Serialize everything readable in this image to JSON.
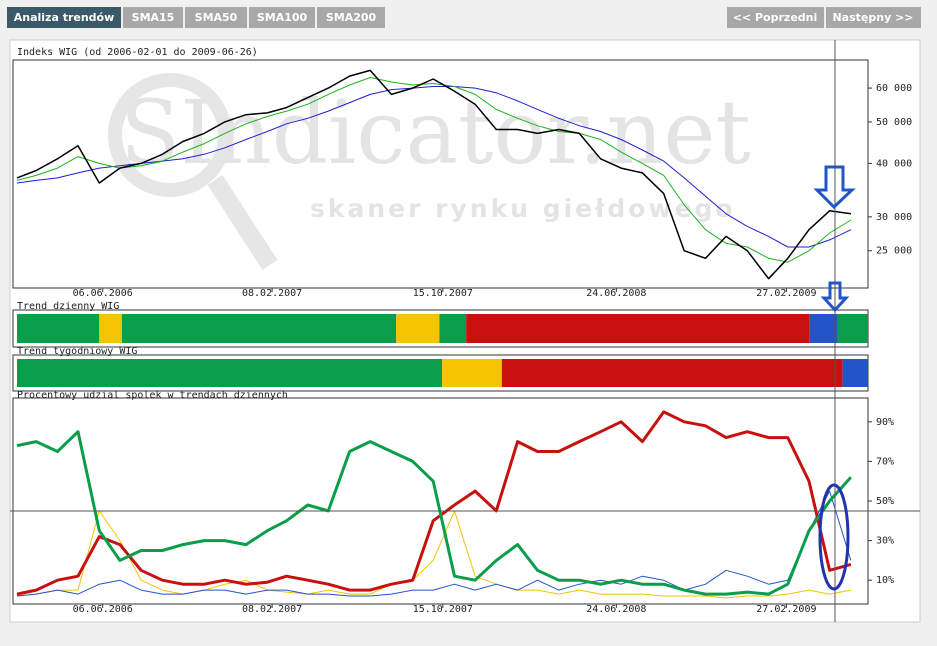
{
  "tabs": [
    "Analiza trendów",
    "SMA15",
    "SMA50",
    "SMA100",
    "SMA200"
  ],
  "nav": [
    "<< Poprzedni",
    "Następny >>"
  ],
  "watermark": {
    "title": "SIndicator.net",
    "subtitle": "skaner rynku giełdowego"
  },
  "chart_data": [
    {
      "type": "line",
      "title": "Indeks WIG (od 2006-02-01 do 2009-06-26)",
      "log": true,
      "xlim": [
        "2006-02-01",
        "2009-06-26"
      ],
      "xticks": [
        {
          "value": "2006-06-06",
          "label": "06.06.2006"
        },
        {
          "value": "2007-02-08",
          "label": "08.02.2007"
        },
        {
          "value": "2007-10-15",
          "label": "15.10.2007"
        },
        {
          "value": "2008-06-24",
          "label": "24.06.2008"
        },
        {
          "value": "2009-02-27",
          "label": "27.02.2009"
        }
      ],
      "ylim": [
        20900,
        68300
      ],
      "yticks": [
        {
          "value": 25000,
          "label": "25 000"
        },
        {
          "value": 30000,
          "label": "30 000"
        },
        {
          "value": 40000,
          "label": "40 000"
        },
        {
          "value": 50000,
          "label": "50 000"
        },
        {
          "value": 60000,
          "label": "60 000"
        }
      ],
      "x": [
        "2006-02-01",
        "2006-03-01",
        "2006-04-01",
        "2006-05-01",
        "2006-06-01",
        "2006-07-01",
        "2006-08-01",
        "2006-09-01",
        "2006-10-01",
        "2006-11-01",
        "2006-12-01",
        "2007-01-01",
        "2007-02-01",
        "2007-03-01",
        "2007-04-01",
        "2007-05-01",
        "2007-06-01",
        "2007-07-01",
        "2007-08-01",
        "2007-09-01",
        "2007-10-01",
        "2007-11-01",
        "2007-12-01",
        "2008-01-01",
        "2008-02-01",
        "2008-03-01",
        "2008-04-01",
        "2008-05-01",
        "2008-06-01",
        "2008-07-01",
        "2008-08-01",
        "2008-09-01",
        "2008-10-01",
        "2008-11-01",
        "2008-12-01",
        "2009-01-01",
        "2009-02-01",
        "2009-03-01",
        "2009-04-01",
        "2009-05-01",
        "2009-06-01"
      ],
      "series": [
        {
          "color": "#1f1fd0",
          "width": 1,
          "values": [
            36000,
            36500,
            37000,
            38000,
            39000,
            39500,
            40000,
            40500,
            41000,
            42000,
            43500,
            45500,
            47500,
            49500,
            51000,
            53000,
            55500,
            58000,
            59500,
            60000,
            60500,
            60500,
            60000,
            58500,
            56000,
            53500,
            51000,
            49000,
            47500,
            45500,
            43000,
            40500,
            37000,
            33500,
            30500,
            28500,
            27000,
            25500,
            25500,
            26500,
            28000
          ]
        },
        {
          "color": "#1db31d",
          "width": 1,
          "values": [
            36500,
            37500,
            39000,
            41500,
            40000,
            39000,
            39500,
            40500,
            42500,
            44500,
            47000,
            49500,
            51500,
            53000,
            55000,
            58000,
            61000,
            63500,
            62000,
            61000,
            61500,
            60500,
            58000,
            53500,
            51000,
            49000,
            47500,
            47000,
            45500,
            42500,
            40000,
            37500,
            32000,
            28000,
            26000,
            25500,
            24000,
            23500,
            25000,
            27500,
            29500
          ]
        },
        {
          "color": "#000000",
          "width": 1.5,
          "values": [
            37000,
            38500,
            41000,
            44000,
            36000,
            39000,
            40000,
            42000,
            45000,
            47000,
            50000,
            52000,
            52500,
            54000,
            57000,
            60000,
            64000,
            66000,
            58000,
            60000,
            63000,
            59000,
            55000,
            48000,
            48000,
            47000,
            48000,
            47000,
            41000,
            39000,
            38000,
            34000,
            25000,
            24000,
            27000,
            25000,
            21500,
            24000,
            28000,
            31000,
            30500
          ]
        }
      ]
    },
    {
      "type": "strip",
      "title": "Trend dzienny WIG",
      "xlim": [
        "2006-02-01",
        "2009-06-26"
      ],
      "segments": [
        {
          "x0": "2006-02-01",
          "x1": "2006-06-01",
          "color": "#0a9e4a"
        },
        {
          "x0": "2006-06-01",
          "x1": "2006-07-04",
          "color": "#f5c400"
        },
        {
          "x0": "2006-07-04",
          "x1": "2007-08-08",
          "color": "#0a9e4a"
        },
        {
          "x0": "2007-08-08",
          "x1": "2007-10-10",
          "color": "#f5c400"
        },
        {
          "x0": "2007-10-10",
          "x1": "2007-11-18",
          "color": "#0a9e4a"
        },
        {
          "x0": "2007-11-18",
          "x1": "2009-04-02",
          "color": "#c8100f"
        },
        {
          "x0": "2009-04-02",
          "x1": "2009-05-13",
          "color": "#2255c8"
        },
        {
          "x0": "2009-05-13",
          "x1": "2009-06-26",
          "color": "#0a9e4a"
        }
      ]
    },
    {
      "type": "strip",
      "title": "Trend tygodniowy WIG",
      "xlim": [
        "2006-02-01",
        "2009-06-26"
      ],
      "segments": [
        {
          "x0": "2006-02-01",
          "x1": "2007-10-14",
          "color": "#0a9e4a"
        },
        {
          "x0": "2007-10-14",
          "x1": "2008-01-09",
          "color": "#f5c400"
        },
        {
          "x0": "2008-01-09",
          "x1": "2009-05-20",
          "color": "#c8100f"
        },
        {
          "x0": "2009-05-20",
          "x1": "2009-06-26",
          "color": "#2255c8"
        }
      ]
    },
    {
      "type": "line",
      "title": "Procentowy udzial spolek w trendach dziennych",
      "xlim": [
        "2006-02-01",
        "2009-06-26"
      ],
      "xticks": [
        {
          "value": "2006-06-06",
          "label": "06.06.2006"
        },
        {
          "value": "2007-02-08",
          "label": "08.02.2007"
        },
        {
          "value": "2007-10-15",
          "label": "15.10.2007"
        },
        {
          "value": "2008-06-24",
          "label": "24.06.2008"
        },
        {
          "value": "2009-02-27",
          "label": "27.02.2009"
        }
      ],
      "ylim": [
        0,
        100
      ],
      "yticks": [
        {
          "value": 10,
          "label": "10%"
        },
        {
          "value": 30,
          "label": "30%"
        },
        {
          "value": 50,
          "label": "50%"
        },
        {
          "value": 70,
          "label": "70%"
        },
        {
          "value": 90,
          "label": "90%"
        }
      ],
      "x": [
        "2006-02-01",
        "2006-03-01",
        "2006-04-01",
        "2006-05-01",
        "2006-06-01",
        "2006-07-01",
        "2006-08-01",
        "2006-09-01",
        "2006-10-01",
        "2006-11-01",
        "2006-12-01",
        "2007-01-01",
        "2007-02-01",
        "2007-03-01",
        "2007-04-01",
        "2007-05-01",
        "2007-06-01",
        "2007-07-01",
        "2007-08-01",
        "2007-09-01",
        "2007-10-01",
        "2007-11-01",
        "2007-12-01",
        "2008-01-01",
        "2008-02-01",
        "2008-03-01",
        "2008-04-01",
        "2008-05-01",
        "2008-06-01",
        "2008-07-01",
        "2008-08-01",
        "2008-09-01",
        "2008-10-01",
        "2008-11-01",
        "2008-12-01",
        "2009-01-01",
        "2009-02-01",
        "2009-03-01",
        "2009-04-01",
        "2009-05-01",
        "2009-06-01"
      ],
      "series": [
        {
          "color": "#f5c400",
          "width": 1,
          "values": [
            2,
            3,
            5,
            5,
            45,
            30,
            10,
            5,
            3,
            5,
            8,
            10,
            5,
            4,
            3,
            5,
            3,
            3,
            8,
            10,
            20,
            45,
            12,
            8,
            5,
            5,
            3,
            5,
            3,
            3,
            3,
            2,
            2,
            2,
            1,
            2,
            2,
            3,
            5,
            3,
            5
          ]
        },
        {
          "color": "#2255c8",
          "width": 1,
          "values": [
            2,
            3,
            5,
            3,
            8,
            10,
            5,
            3,
            3,
            5,
            5,
            3,
            5,
            5,
            3,
            3,
            2,
            2,
            3,
            5,
            5,
            8,
            5,
            8,
            5,
            10,
            5,
            8,
            10,
            8,
            12,
            10,
            5,
            8,
            15,
            12,
            8,
            10,
            35,
            55,
            20
          ]
        },
        {
          "color": "#c8100f",
          "width": 3,
          "values": [
            3,
            5,
            10,
            12,
            32,
            28,
            15,
            10,
            8,
            8,
            10,
            8,
            9,
            12,
            10,
            8,
            5,
            5,
            8,
            10,
            40,
            48,
            55,
            45,
            80,
            75,
            75,
            80,
            85,
            90,
            80,
            95,
            90,
            88,
            82,
            85,
            82,
            82,
            60,
            15,
            18
          ]
        },
        {
          "color": "#0a9e4a",
          "width": 3,
          "values": [
            78,
            80,
            75,
            85,
            35,
            20,
            25,
            25,
            28,
            30,
            30,
            28,
            35,
            40,
            48,
            45,
            75,
            80,
            75,
            70,
            60,
            12,
            10,
            20,
            28,
            15,
            10,
            10,
            8,
            10,
            8,
            8,
            5,
            3,
            3,
            4,
            3,
            8,
            35,
            50,
            62
          ]
        }
      ]
    }
  ]
}
